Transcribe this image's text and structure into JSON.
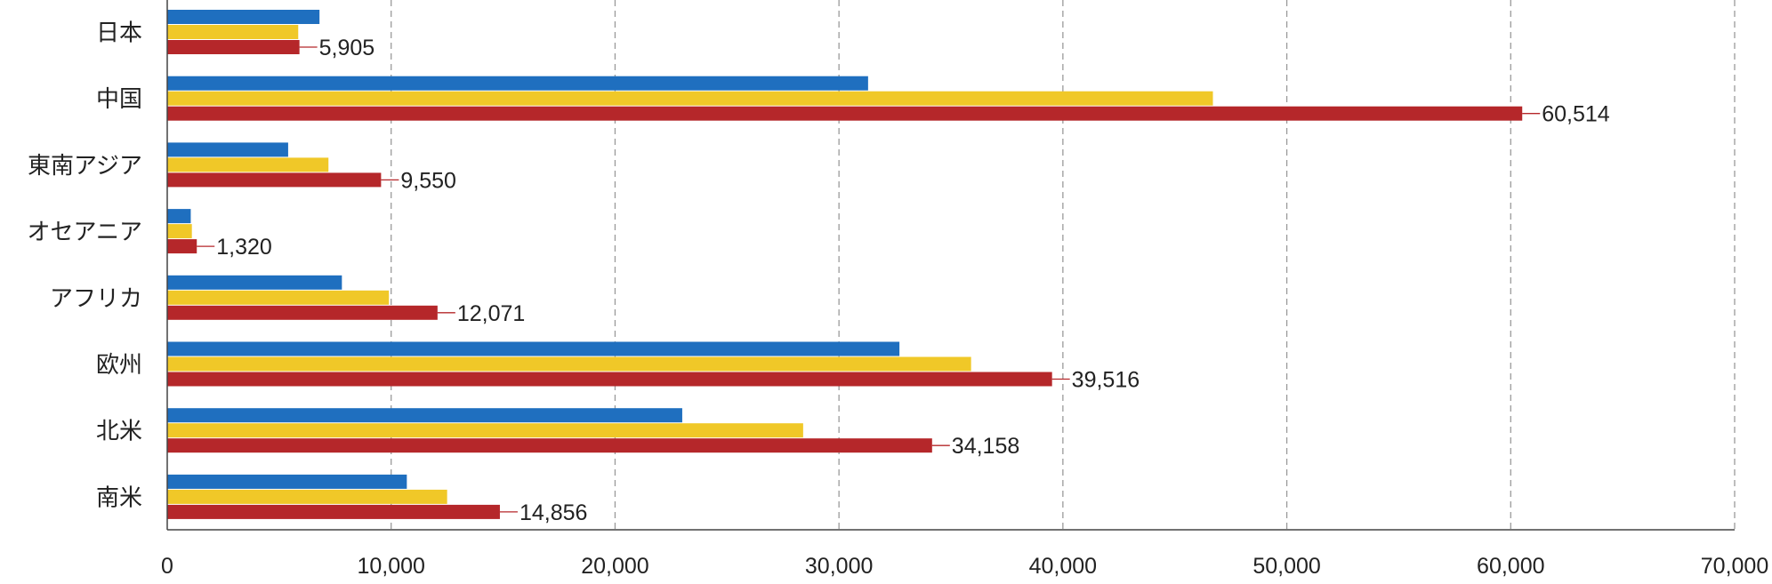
{
  "chart_data": {
    "type": "bar",
    "orientation": "horizontal",
    "categories": [
      "日本",
      "中国",
      "東南アジア",
      "オセアニア",
      "アフリカ",
      "欧州",
      "北米",
      "南米"
    ],
    "series": [
      {
        "color": "#1f6fbf",
        "values": [
          6800,
          31300,
          5400,
          1050,
          7800,
          32700,
          23000,
          10700
        ]
      },
      {
        "color": "#f0c828",
        "values": [
          5850,
          46700,
          7200,
          1100,
          9900,
          35900,
          28400,
          12500
        ]
      },
      {
        "color": "#b5272a",
        "values": [
          5905,
          60514,
          9550,
          1320,
          12071,
          39516,
          34158,
          14856
        ]
      }
    ],
    "data_labels": [
      "5,905",
      "60,514",
      "9,550",
      "1,320",
      "12,071",
      "39,516",
      "34,158",
      "14,856"
    ],
    "x_ticks": [
      "0",
      "10,000",
      "20,000",
      "30,000",
      "40,000",
      "50,000",
      "60,000",
      "70,000"
    ],
    "xlim": [
      0,
      70000
    ],
    "grid": "vertical-dashed",
    "title": "",
    "xlabel": "",
    "ylabel": ""
  }
}
